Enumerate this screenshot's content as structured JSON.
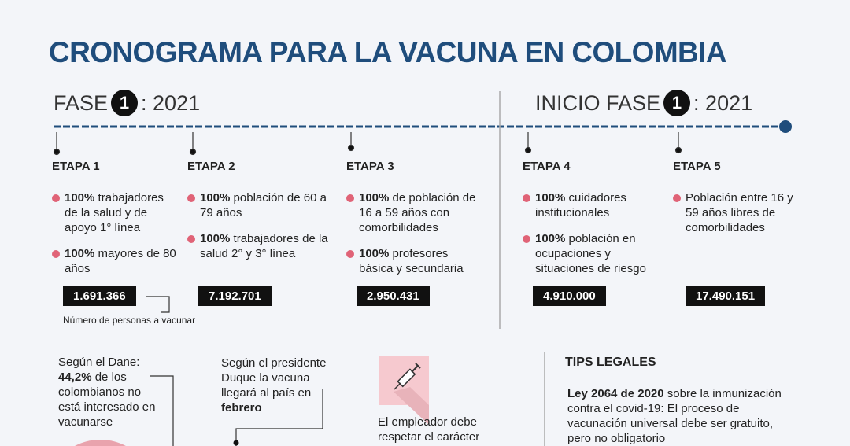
{
  "title": "CRONOGRAMA PARA LA VACUNA EN COLOMBIA",
  "phases": [
    {
      "label": "FASE",
      "number": "1",
      "year": ": 2021"
    },
    {
      "label": "INICIO FASE",
      "number": "1",
      "year": ": 2021"
    }
  ],
  "stages": [
    {
      "name": "ETAPA 1",
      "items": [
        {
          "bold": "100%",
          "text": "trabajadores de la salud y de apoyo 1° línea"
        },
        {
          "bold": "100%",
          "text": "mayores de 80 años"
        }
      ],
      "count": "1.691.366"
    },
    {
      "name": "ETAPA 2",
      "items": [
        {
          "bold": "100%",
          "text": "población de 60 a 79 años"
        },
        {
          "bold": "100%",
          "text": "trabajadores de la salud 2° y 3° línea"
        }
      ],
      "count": "7.192.701"
    },
    {
      "name": "ETAPA 3",
      "items": [
        {
          "bold": "100%",
          "text": "de población de 16 a 59 años con comorbilidades"
        },
        {
          "bold": "100%",
          "text": "profesores básica y secundaria"
        }
      ],
      "count": "2.950.431"
    },
    {
      "name": "ETAPA 4",
      "items": [
        {
          "bold": "100%",
          "text": "cuidadores institucionales"
        },
        {
          "bold": "100%",
          "text": "población en ocupaciones y situaciones de riesgo"
        }
      ],
      "count": "4.910.000"
    },
    {
      "name": "ETAPA 5",
      "items": [
        {
          "text": "Población entre 16 y 59 años libres de comorbilidades"
        }
      ],
      "count": "17.490.151"
    }
  ],
  "count_note": "Número de personas a vacunar",
  "notes": [
    {
      "parts": [
        {
          "text": "Según el Dane:"
        },
        {
          "text": "44,2%",
          "bold": true
        },
        {
          "text": "de los colombianos no está interesado en vacunarse"
        }
      ]
    },
    {
      "parts": [
        {
          "text": "Según el presidente Duque la vacuna llegará al país en"
        },
        {
          "text": "febrero",
          "bold": true
        }
      ]
    },
    {
      "parts": [
        {
          "text": "El empleador debe respetar el carácter"
        }
      ]
    }
  ],
  "tips": {
    "title": "TIPS LEGALES",
    "parts": [
      {
        "text": "Ley 2064 de 2020",
        "bold": true
      },
      {
        "text": "sobre la inmunización contra el covid-19: El proceso de vacunación universal debe ser gratuito, pero no obligatorio"
      }
    ]
  }
}
